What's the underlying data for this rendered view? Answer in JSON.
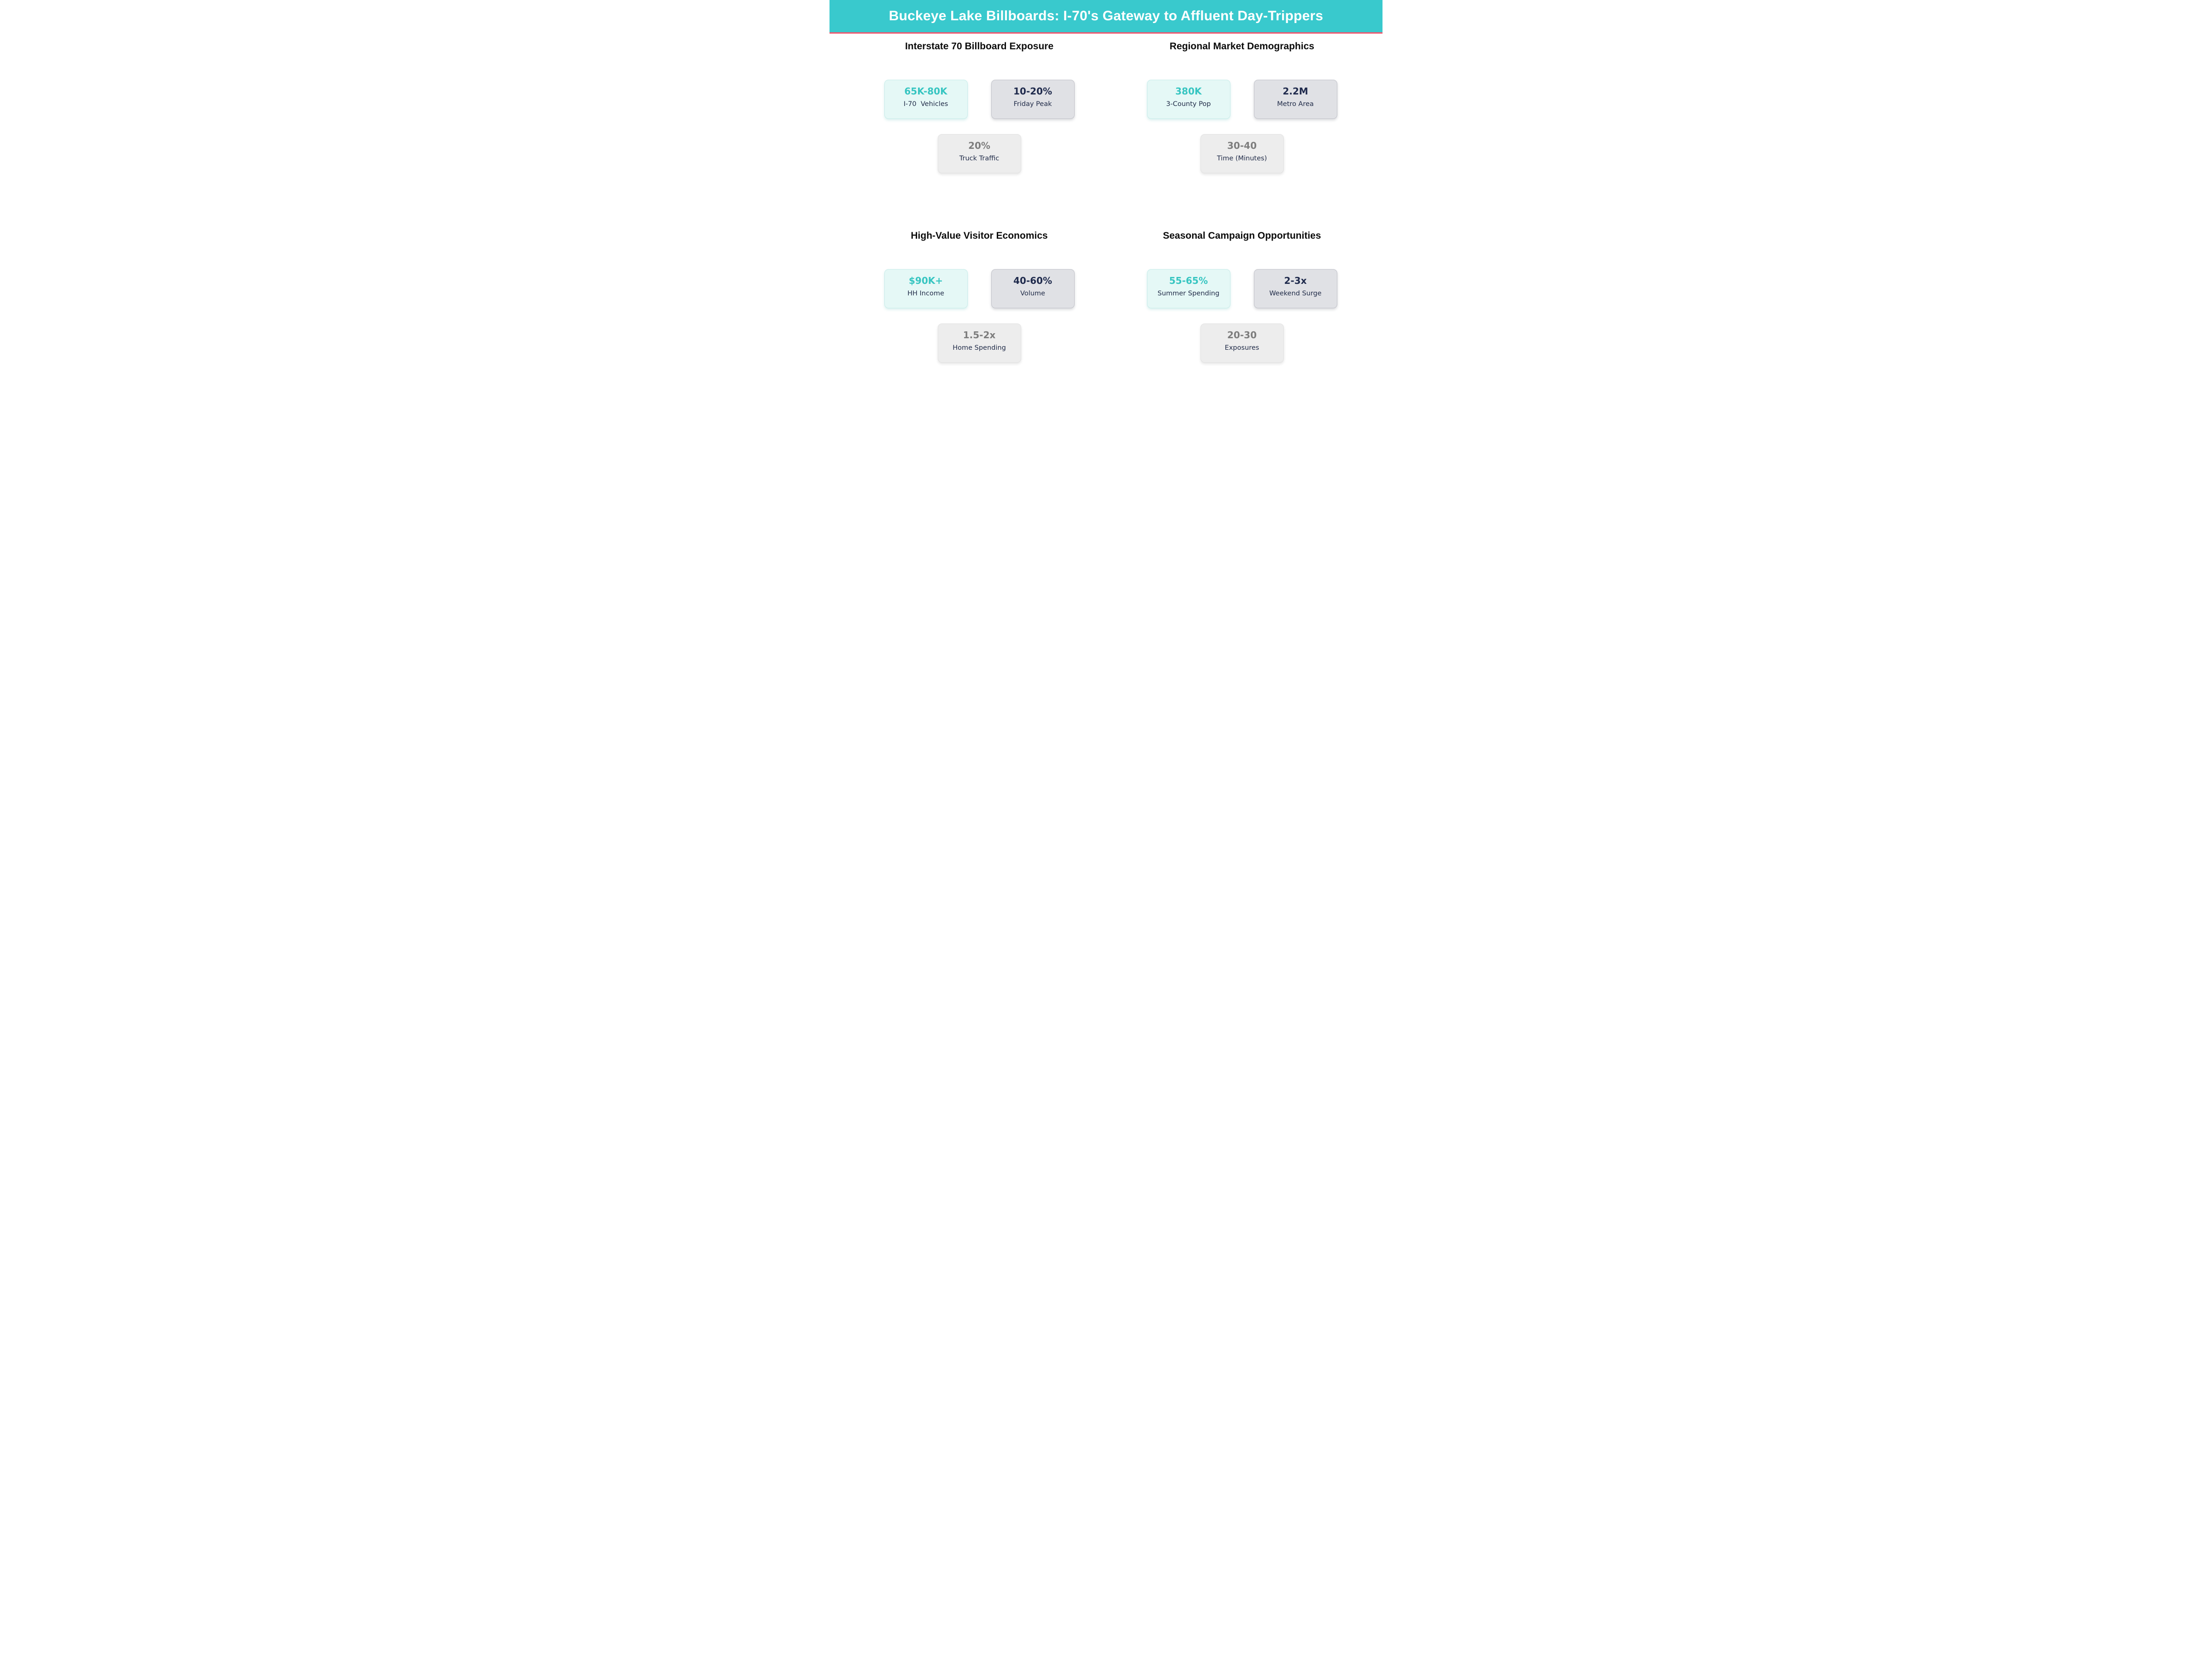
{
  "header": {
    "title": "Buckeye Lake Billboards: I-70's Gateway to Affluent Day-Trippers"
  },
  "palette": {
    "header_bg": "#39c9cd",
    "header_divider_pink": "#f0596f",
    "accent_teal": "#36c5c1",
    "navy_text": "#1f2a47",
    "gray_value_text": "#7d7d7d",
    "mint_card_bg": "#e5f8f6",
    "mint_card_border": "#c9ecea",
    "gray_card_bg": "#e0e1e5",
    "gray_card_border": "#c2c3ca",
    "light_card_bg": "#ededed",
    "section_title_text": "#0b0b0b",
    "page_bg": "#ffffff"
  },
  "chart_data": {
    "type": "table",
    "title": "Buckeye Lake Billboards: I-70's Gateway to Affluent Day-Trippers",
    "groups": [
      {
        "title": "Interstate 70 Billboard Exposure",
        "stats": [
          {
            "value": "65K-80K",
            "label": "I-70  Vehicles"
          },
          {
            "value": "10-20%",
            "label": "Friday Peak"
          },
          {
            "value": "20%",
            "label": "Truck Traffic"
          }
        ]
      },
      {
        "title": "Regional Market Demographics",
        "stats": [
          {
            "value": "380K",
            "label": "3-County Pop"
          },
          {
            "value": "2.2M",
            "label": "Metro Area"
          },
          {
            "value": "30-40",
            "label": "Time (Minutes)"
          }
        ]
      },
      {
        "title": "High-Value Visitor Economics",
        "stats": [
          {
            "value": "$90K+",
            "label": "HH Income"
          },
          {
            "value": "40-60%",
            "label": "Volume"
          },
          {
            "value": "1.5-2x",
            "label": "Home Spending"
          }
        ]
      },
      {
        "title": "Seasonal Campaign Opportunities",
        "stats": [
          {
            "value": "55-65%",
            "label": "Summer Spending"
          },
          {
            "value": "2-3x",
            "label": "Weekend Surge"
          },
          {
            "value": "20-30",
            "label": "Exposures"
          }
        ]
      }
    ]
  }
}
